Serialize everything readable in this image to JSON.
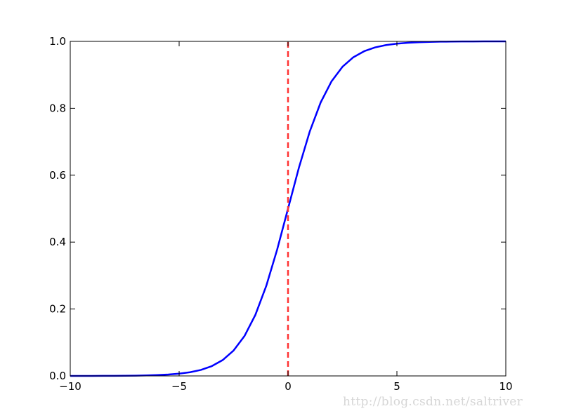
{
  "chart_data": {
    "type": "line",
    "title": "",
    "xlabel": "",
    "ylabel": "",
    "xlim": [
      -10,
      10
    ],
    "ylim": [
      0,
      1
    ],
    "grid": false,
    "xticks": [
      "−10",
      "−5",
      "0",
      "5",
      "10"
    ],
    "xtick_values": [
      -10,
      -5,
      0,
      5,
      10
    ],
    "yticks": [
      "0.0",
      "0.2",
      "0.4",
      "0.6",
      "0.8",
      "1.0"
    ],
    "ytick_values": [
      0,
      0.2,
      0.4,
      0.6,
      0.8,
      1.0
    ],
    "series": [
      {
        "color": "#0000ff",
        "style": "solid",
        "x": [
          -10,
          -9.5,
          -9,
          -8.5,
          -8,
          -7.5,
          -7,
          -6.5,
          -6,
          -5.5,
          -5,
          -4.5,
          -4,
          -3.5,
          -3,
          -2.5,
          -2,
          -1.5,
          -1,
          -0.5,
          0,
          0.5,
          1,
          1.5,
          2,
          2.5,
          3,
          3.5,
          4,
          4.5,
          5,
          5.5,
          6,
          6.5,
          7,
          7.5,
          8,
          8.5,
          9,
          9.5,
          10
        ],
        "y": [
          0.0,
          0.0001,
          0.0001,
          0.0002,
          0.0003,
          0.0006,
          0.0009,
          0.0015,
          0.0025,
          0.0041,
          0.0067,
          0.011,
          0.018,
          0.0293,
          0.0474,
          0.0759,
          0.1192,
          0.1824,
          0.2689,
          0.3775,
          0.5,
          0.6225,
          0.7311,
          0.8176,
          0.8808,
          0.9241,
          0.9526,
          0.9707,
          0.982,
          0.989,
          0.9933,
          0.9959,
          0.9975,
          0.9985,
          0.9991,
          0.9994,
          0.9997,
          0.9998,
          0.9999,
          0.9999,
          1.0
        ]
      },
      {
        "color": "#ff3333",
        "style": "dashed",
        "x": [
          0,
          0
        ],
        "y": [
          0,
          1
        ]
      }
    ]
  },
  "watermark": "http://blog.csdn.net/saltriver"
}
